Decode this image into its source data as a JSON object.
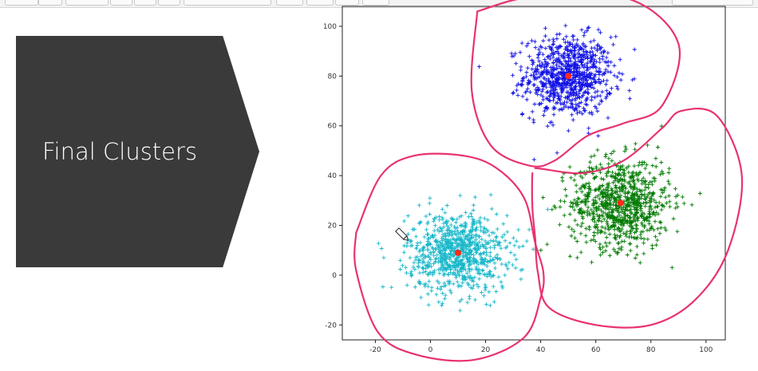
{
  "slide": {
    "arrow_label": "Final Clusters"
  },
  "colors": {
    "background": "#ffffff",
    "arrow": "#3a3a3a",
    "annotation": "#e8336f",
    "centroid": "#ff2a1a"
  },
  "chart_data": {
    "type": "scatter",
    "title": "",
    "xlabel": "",
    "ylabel": "",
    "xlim": [
      -32,
      107
    ],
    "ylim": [
      -26,
      108
    ],
    "xticks": [
      -20,
      0,
      20,
      40,
      60,
      80,
      100
    ],
    "yticks": [
      -20,
      0,
      20,
      40,
      60,
      80,
      100
    ],
    "grid": false,
    "marker": "+",
    "clusters": [
      {
        "color": "#1010e6",
        "center": [
          50,
          80
        ],
        "spread": [
          8,
          8
        ],
        "count": 850
      },
      {
        "color": "#007a00",
        "center": [
          69,
          29
        ],
        "spread": [
          9,
          9
        ],
        "count": 850
      },
      {
        "color": "#17b7c9",
        "center": [
          10,
          9
        ],
        "spread": [
          9,
          8
        ],
        "count": 850
      }
    ],
    "centroids": [
      [
        50,
        80
      ],
      [
        69,
        29
      ],
      [
        10,
        9
      ]
    ],
    "annotations": [
      {
        "type": "hand-drawn-loop",
        "color": "#e8336f",
        "encloses": "cluster-1",
        "points": [
          [
            17,
            106
          ],
          [
            38,
            112
          ],
          [
            72,
            111
          ],
          [
            90,
            93
          ],
          [
            84,
            68
          ],
          [
            70,
            61
          ],
          [
            57,
            56
          ],
          [
            45,
            46
          ],
          [
            36,
            44
          ],
          [
            22,
            52
          ],
          [
            15,
            74
          ],
          [
            17,
            106
          ]
        ]
      },
      {
        "type": "hand-drawn-loop",
        "color": "#e8336f",
        "encloses": "cluster-2",
        "points": [
          [
            38,
            43
          ],
          [
            55,
            41
          ],
          [
            70,
            46
          ],
          [
            84,
            59
          ],
          [
            91,
            66
          ],
          [
            104,
            64
          ],
          [
            113,
            40
          ],
          [
            108,
            10
          ],
          [
            96,
            -10
          ],
          [
            80,
            -20
          ],
          [
            60,
            -20
          ],
          [
            43,
            -13
          ],
          [
            39,
            1
          ],
          [
            38,
            15
          ],
          [
            37,
            27
          ],
          [
            37,
            41
          ]
        ]
      },
      {
        "type": "hand-drawn-loop",
        "color": "#e8336f",
        "encloses": "cluster-3",
        "points": [
          [
            -27,
            17
          ],
          [
            -27,
            2
          ],
          [
            -19,
            -23
          ],
          [
            -5,
            -32
          ],
          [
            16,
            -34
          ],
          [
            34,
            -25
          ],
          [
            40,
            -9
          ],
          [
            41,
            1
          ],
          [
            38,
            13
          ],
          [
            34,
            31
          ],
          [
            24,
            43
          ],
          [
            12,
            48
          ],
          [
            -6,
            48
          ],
          [
            -18,
            40
          ],
          [
            -27,
            17
          ]
        ]
      }
    ]
  }
}
